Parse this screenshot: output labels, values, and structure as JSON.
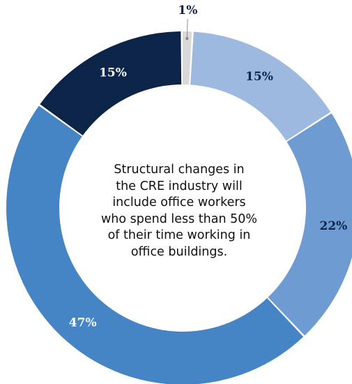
{
  "chart_data": {
    "type": "pie",
    "variant": "donut",
    "slices": [
      {
        "label": "1%",
        "value": 1,
        "color": "#d9d9d9",
        "label_color": "#0b2447"
      },
      {
        "label": "15%",
        "value": 15,
        "color": "#9db9e0",
        "label_color": "#0b2447"
      },
      {
        "label": "22%",
        "value": 22,
        "color": "#6e9bd2",
        "label_color": "#0b2447"
      },
      {
        "label": "47%",
        "value": 47,
        "color": "#4585c6",
        "label_color": "#ffffff"
      },
      {
        "label": "15%",
        "value": 15,
        "color": "#0b2447",
        "label_color": "#ffffff"
      }
    ],
    "center_text": [
      "Structural changes in",
      "the CRE industry will",
      "include office workers",
      "who spend less than 50%",
      "of their time working in",
      "office buildings."
    ],
    "grid": false,
    "legend": "none"
  }
}
